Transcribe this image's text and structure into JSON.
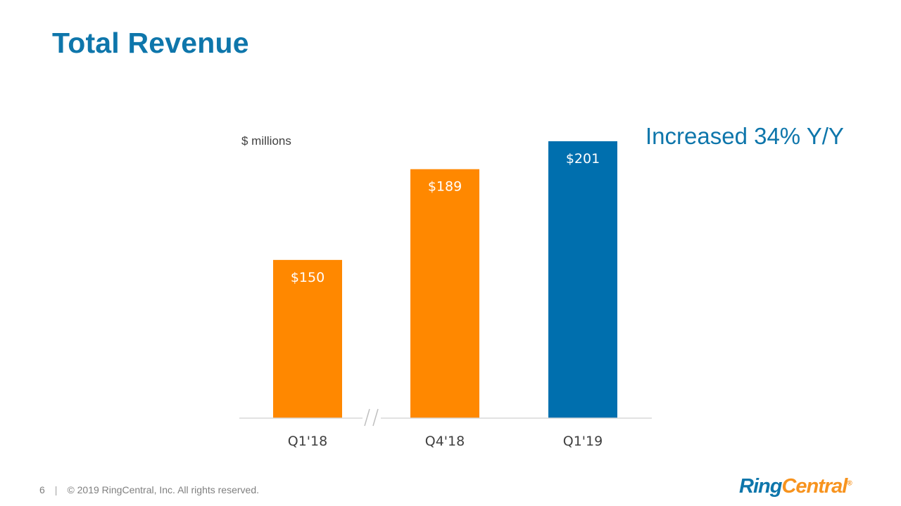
{
  "slide": {
    "title": "Total Revenue",
    "callout": "Increased 34% Y/Y"
  },
  "colors": {
    "title": "#0e76ab",
    "orange": "#ff8800",
    "blue": "#006fae"
  },
  "chart_data": {
    "type": "bar",
    "ylabel": "$ millions",
    "categories": [
      "Q1'18",
      "Q4'18",
      "Q1'19"
    ],
    "values": [
      150,
      189,
      201
    ],
    "value_labels": [
      "$150",
      "$189",
      "$201"
    ],
    "bar_colors": [
      "#ff8800",
      "#ff8800",
      "#006fae"
    ],
    "axis_break_between": [
      "Q1'18",
      "Q4'18"
    ],
    "grid": false,
    "legend": "none"
  },
  "footer": {
    "page_number": "6",
    "separator": "|",
    "copyright": "© 2019 RingCentral, Inc.  All rights reserved."
  },
  "logo": {
    "part1": "Ring",
    "part2": "Central",
    "mark": "®"
  }
}
